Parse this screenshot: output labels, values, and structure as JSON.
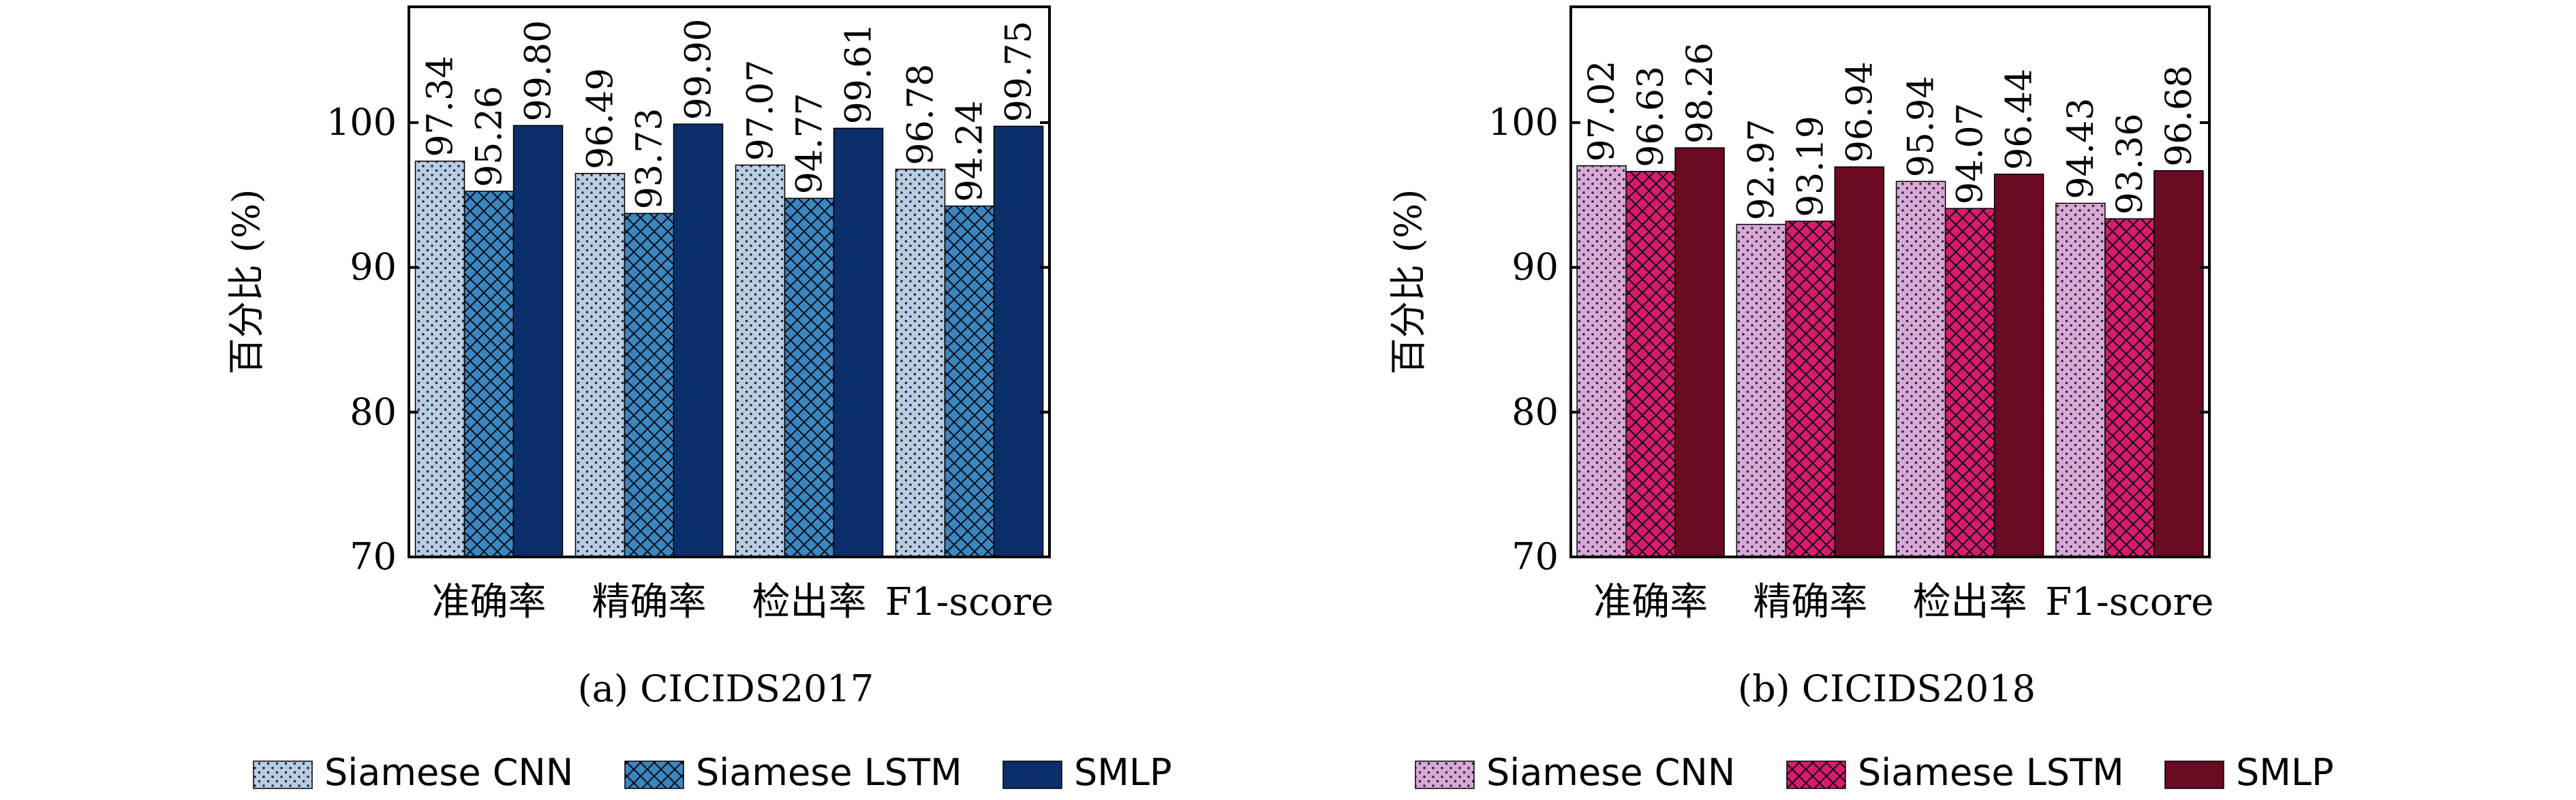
{
  "colors": {
    "a": [
      "#b8cde0",
      "#3a86c0",
      "#0b2f6b"
    ],
    "b": [
      "#d9a8d4",
      "#d81b6a",
      "#6b0a23"
    ]
  },
  "chart_data": [
    {
      "type": "bar",
      "caption": "(a) CICIDS2017",
      "ylabel": "百分比 (%)",
      "ylim": [
        70,
        108
      ],
      "yticks": [
        70,
        80,
        90,
        100
      ],
      "categories": [
        "准确率",
        "精确率",
        "检出率",
        "F1-score"
      ],
      "series": [
        {
          "name": "Siamese CNN",
          "pattern": "dots",
          "values": [
            97.34,
            96.49,
            97.07,
            96.78
          ],
          "labels": [
            "97.34",
            "96.49",
            "97.07",
            "96.78"
          ]
        },
        {
          "name": "Siamese LSTM",
          "pattern": "crosshatch",
          "values": [
            95.26,
            93.73,
            94.77,
            94.24
          ],
          "labels": [
            "95.26",
            "93.73",
            "94.77",
            "94.24"
          ]
        },
        {
          "name": "SMLP",
          "pattern": "solid",
          "values": [
            99.8,
            99.9,
            99.61,
            99.75
          ],
          "labels": [
            "99.80",
            "99.90",
            "99.61",
            "99.75"
          ]
        }
      ],
      "legend_position": "bottom"
    },
    {
      "type": "bar",
      "caption": "(b) CICIDS2018",
      "ylabel": "百分比 (%)",
      "ylim": [
        70,
        108
      ],
      "yticks": [
        70,
        80,
        90,
        100
      ],
      "categories": [
        "准确率",
        "精确率",
        "检出率",
        "F1-score"
      ],
      "series": [
        {
          "name": "Siamese CNN",
          "pattern": "dots",
          "values": [
            97.02,
            92.97,
            95.94,
            94.43
          ],
          "labels": [
            "97.02",
            "92.97",
            "95.94",
            "94.43"
          ]
        },
        {
          "name": "Siamese LSTM",
          "pattern": "crosshatch",
          "values": [
            96.63,
            93.19,
            94.07,
            93.36
          ],
          "labels": [
            "96.63",
            "93.19",
            "94.07",
            "93.36"
          ]
        },
        {
          "name": "SMLP",
          "pattern": "solid",
          "values": [
            98.26,
            96.94,
            96.44,
            96.68
          ],
          "labels": [
            "98.26",
            "96.94",
            "96.44",
            "96.68"
          ]
        }
      ],
      "legend_position": "bottom"
    }
  ]
}
